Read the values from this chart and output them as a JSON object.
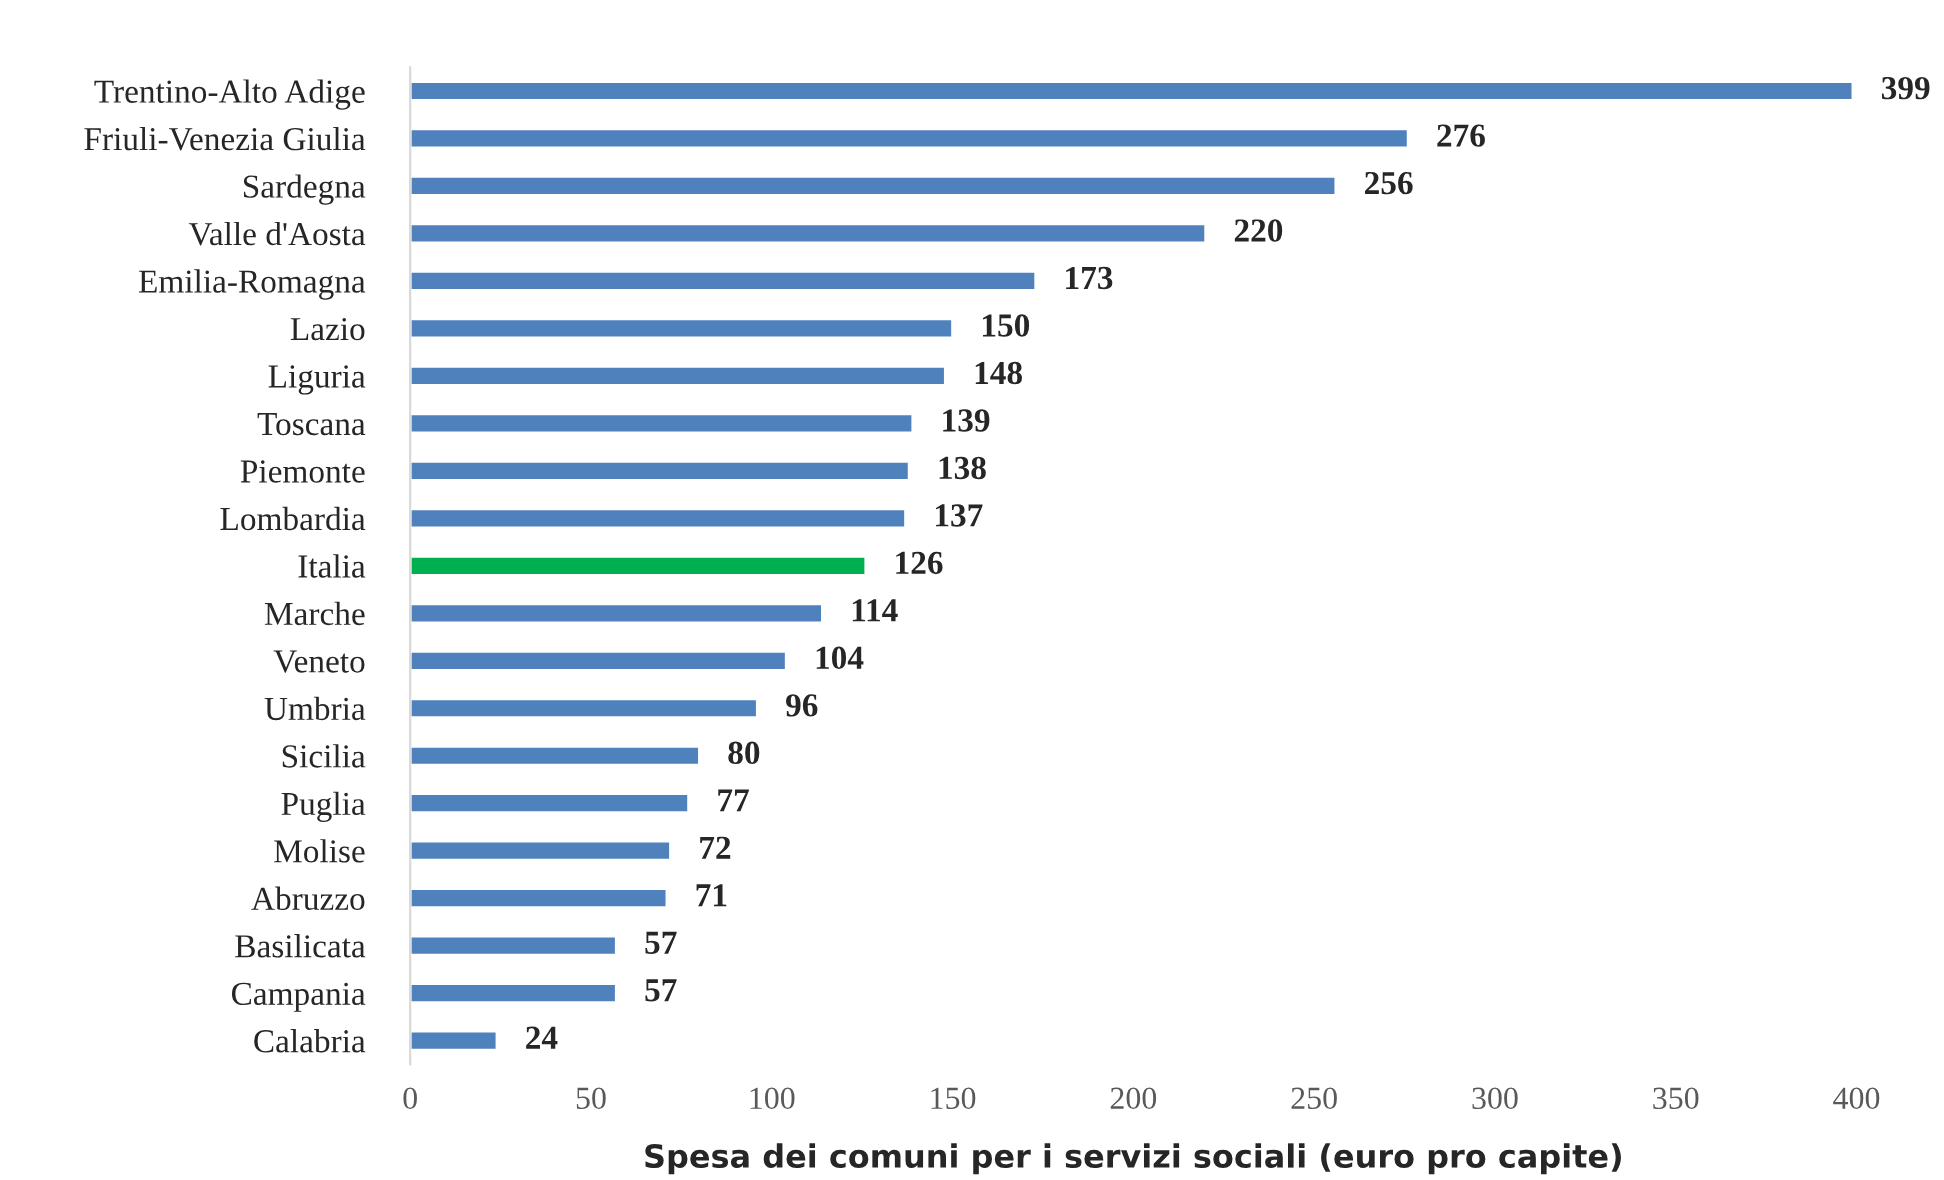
{
  "chart_data": {
    "type": "bar",
    "orientation": "horizontal",
    "xlabel": "Spesa dei comuni per i servizi sociali (euro pro capite)",
    "categories": [
      "Trentino-Alto Adige",
      "Friuli-Venezia Giulia",
      "Sardegna",
      "Valle d'Aosta",
      "Emilia-Romagna",
      "Lazio",
      "Liguria",
      "Toscana",
      "Piemonte",
      "Lombardia",
      "Italia",
      "Marche",
      "Veneto",
      "Umbria",
      "Sicilia",
      "Puglia",
      "Molise",
      "Abruzzo",
      "Basilicata",
      "Campania",
      "Calabria"
    ],
    "values": [
      399,
      276,
      256,
      220,
      173,
      150,
      148,
      139,
      138,
      137,
      126,
      114,
      104,
      96,
      80,
      77,
      72,
      71,
      57,
      57,
      24
    ],
    "colors": [
      "#4f81bd",
      "#4f81bd",
      "#4f81bd",
      "#4f81bd",
      "#4f81bd",
      "#4f81bd",
      "#4f81bd",
      "#4f81bd",
      "#4f81bd",
      "#4f81bd",
      "#00b050",
      "#4f81bd",
      "#4f81bd",
      "#4f81bd",
      "#4f81bd",
      "#4f81bd",
      "#4f81bd",
      "#4f81bd",
      "#4f81bd",
      "#4f81bd",
      "#4f81bd"
    ],
    "xlim": [
      0,
      400
    ],
    "xticks": [
      0,
      50,
      100,
      150,
      200,
      250,
      300,
      350,
      400
    ],
    "data_labels": true,
    "grid": false,
    "legend": false
  }
}
